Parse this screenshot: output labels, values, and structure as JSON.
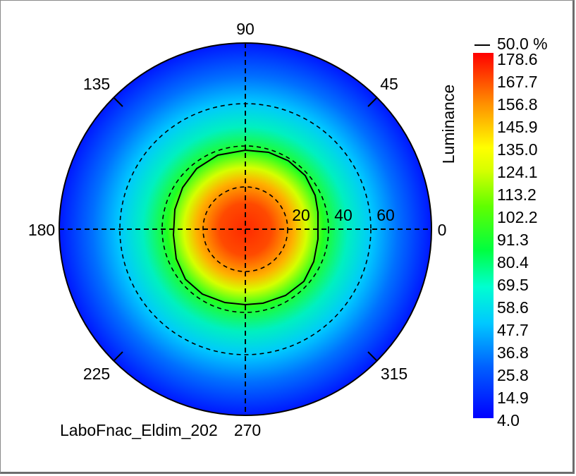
{
  "chart_data": {
    "type": "heatmap",
    "subtype": "polar",
    "title": "",
    "angle_labels": [
      "90",
      "135",
      "45",
      "180",
      "0",
      "225",
      "315",
      "270"
    ],
    "radial_labels": [
      "20",
      "40",
      "60"
    ],
    "legend": {
      "title": "Luminance",
      "contour_label": "50.0 %",
      "max": 178.6,
      "min": 4.0,
      "ticks": [
        "178.6",
        "167.7",
        "156.8",
        "145.9",
        "135.0",
        "124.1",
        "113.2",
        "102.2",
        "91.3",
        "80.4",
        "69.5",
        "58.6",
        "47.7",
        "36.8",
        "25.8",
        "14.9",
        "4.0"
      ],
      "colors": [
        "#0000ff",
        "#00a0ff",
        "#00ffff",
        "#00ff40",
        "#40ff00",
        "#ffff00",
        "#ff8000",
        "#ff0000"
      ]
    },
    "grid": true,
    "footer": "LaboFnac_Eldim_202"
  }
}
